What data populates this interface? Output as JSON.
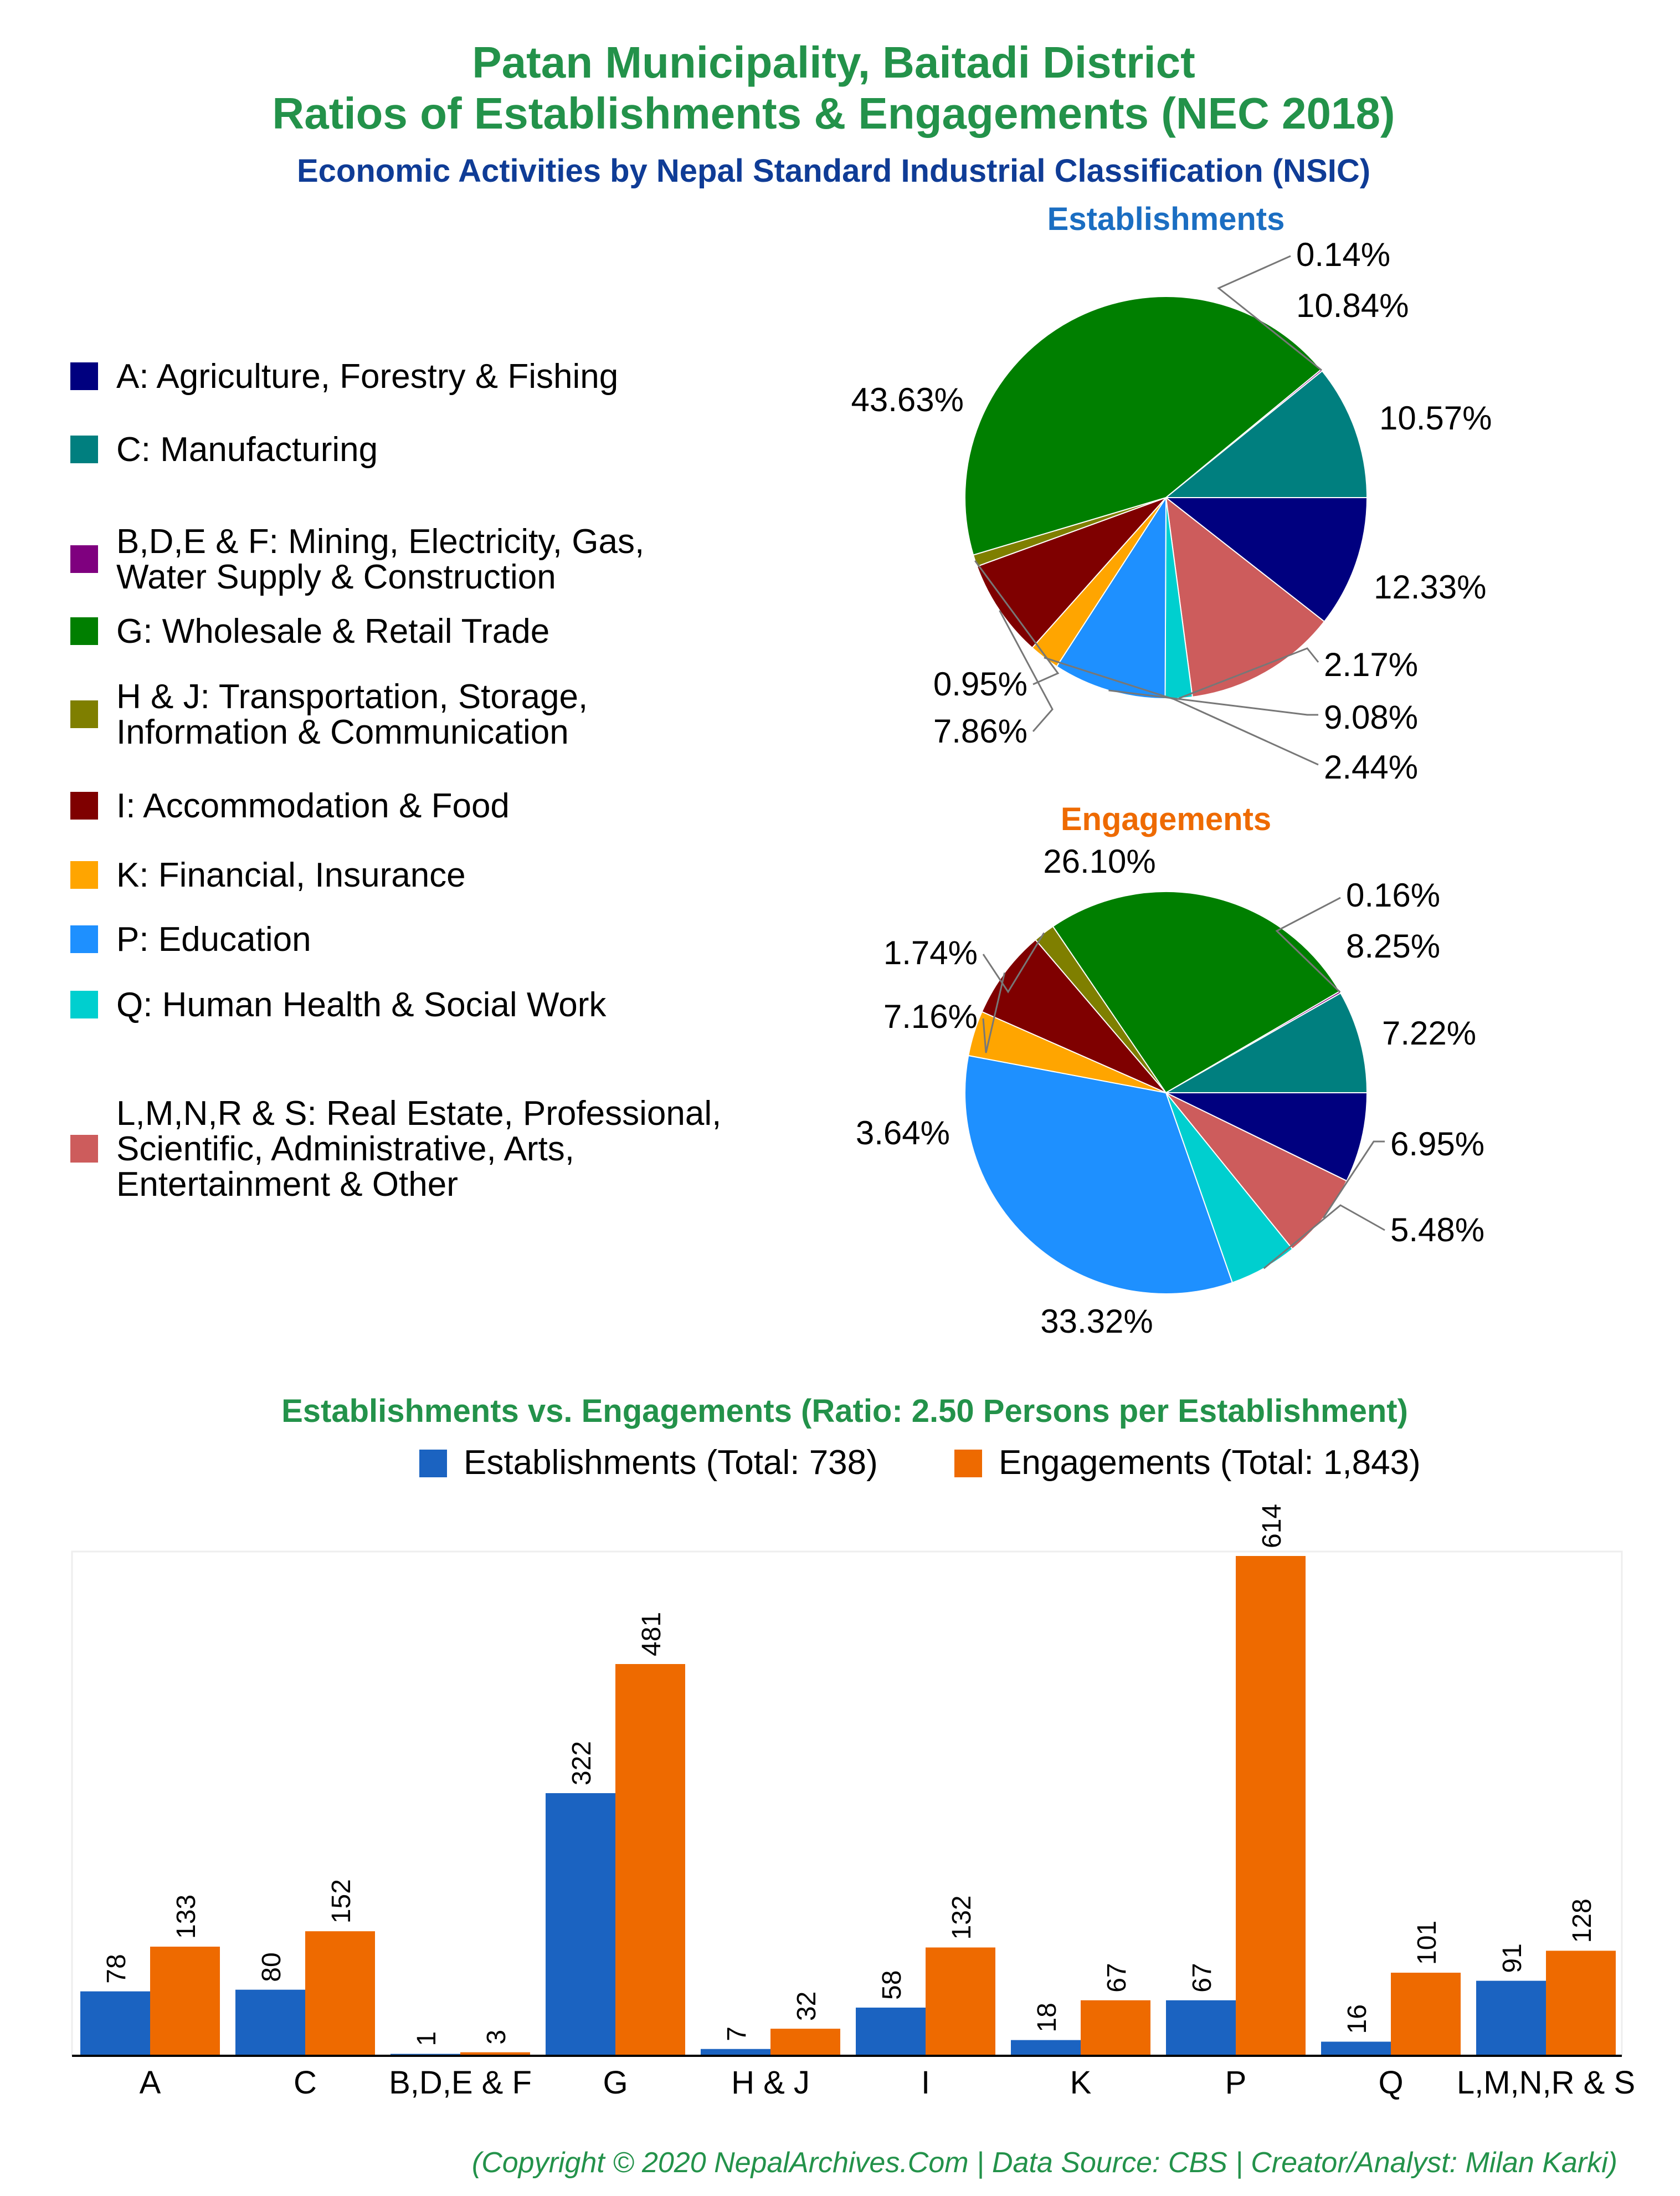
{
  "header": {
    "title_line1": "Patan Municipality, Baitadi District",
    "title_line2": "Ratios of Establishments & Engagements (NEC 2018)",
    "subtitle": "Economic Activities by Nepal Standard Industrial Classification (NSIC)"
  },
  "colors": {
    "title": "#23924a",
    "subtitle": "#0f3c96",
    "establishments": "#1b63c1",
    "engagements": "#ee6a00",
    "est_pie_title": "#1b6ec2",
    "eng_pie_title": "#ee6a00"
  },
  "legend": [
    {
      "code": "A",
      "label_lines": [
        "A: Agriculture, Forestry & Fishing"
      ],
      "color": "#00007f"
    },
    {
      "code": "C",
      "label_lines": [
        "C: Manufacturing"
      ],
      "color": "#007f7f"
    },
    {
      "code": "BDEF",
      "label_lines": [
        "B,D,E & F: Mining, Electricity, Gas,",
        "Water Supply & Construction"
      ],
      "color": "#7f007f"
    },
    {
      "code": "G",
      "label_lines": [
        "G: Wholesale & Retail Trade"
      ],
      "color": "#007f00"
    },
    {
      "code": "HJ",
      "label_lines": [
        "H & J: Transportation, Storage,",
        "Information & Communication"
      ],
      "color": "#7f7f00"
    },
    {
      "code": "I",
      "label_lines": [
        "I: Accommodation & Food"
      ],
      "color": "#7f0000"
    },
    {
      "code": "K",
      "label_lines": [
        "K: Financial, Insurance"
      ],
      "color": "#ffa500"
    },
    {
      "code": "P",
      "label_lines": [
        "P: Education"
      ],
      "color": "#1e90ff"
    },
    {
      "code": "Q",
      "label_lines": [
        "Q: Human Health & Social Work"
      ],
      "color": "#00cfcf"
    },
    {
      "code": "LMNRS",
      "label_lines": [
        "L,M,N,R & S: Real Estate, Professional,",
        "Scientific, Administrative, Arts,",
        "Entertainment & Other"
      ],
      "color": "#cd5c5c"
    }
  ],
  "chart_data": [
    {
      "type": "pie",
      "title": "Establishments",
      "slices": [
        {
          "code": "A",
          "value": 10.57,
          "label": "10.57%"
        },
        {
          "code": "LMNRS",
          "value": 12.33,
          "label": "12.33%"
        },
        {
          "code": "Q",
          "value": 2.17,
          "label": "2.17%"
        },
        {
          "code": "P",
          "value": 9.08,
          "label": "9.08%"
        },
        {
          "code": "K",
          "value": 2.44,
          "label": "2.44%"
        },
        {
          "code": "I",
          "value": 7.86,
          "label": "7.86%"
        },
        {
          "code": "HJ",
          "value": 0.95,
          "label": "0.95%"
        },
        {
          "code": "G",
          "value": 43.63,
          "label": "43.63%"
        },
        {
          "code": "BDEF",
          "value": 0.14,
          "label": "0.14%"
        },
        {
          "code": "C",
          "value": 10.84,
          "label": "10.84%"
        }
      ]
    },
    {
      "type": "pie",
      "title": "Engagements",
      "slices": [
        {
          "code": "A",
          "value": 7.22,
          "label": "7.22%"
        },
        {
          "code": "LMNRS",
          "value": 6.95,
          "label": "6.95%"
        },
        {
          "code": "Q",
          "value": 5.48,
          "label": "5.48%"
        },
        {
          "code": "P",
          "value": 33.32,
          "label": "33.32%"
        },
        {
          "code": "K",
          "value": 3.64,
          "label": "3.64%"
        },
        {
          "code": "I",
          "value": 7.16,
          "label": "7.16%"
        },
        {
          "code": "HJ",
          "value": 1.74,
          "label": "1.74%"
        },
        {
          "code": "G",
          "value": 26.1,
          "label": "26.10%"
        },
        {
          "code": "BDEF",
          "value": 0.16,
          "label": "0.16%"
        },
        {
          "code": "C",
          "value": 8.25,
          "label": "8.25%"
        }
      ]
    },
    {
      "type": "bar",
      "title": "Establishments vs. Engagements (Ratio: 2.50 Persons per Establishment)",
      "categories": [
        "A",
        "C",
        "B,D,E & F",
        "G",
        "H & J",
        "I",
        "K",
        "P",
        "Q",
        "L,M,N,R & S"
      ],
      "series": [
        {
          "name": "Establishments (Total: 738)",
          "values": [
            78,
            80,
            1,
            322,
            7,
            58,
            18,
            67,
            16,
            91
          ]
        },
        {
          "name": "Engagements (Total: 1,843)",
          "values": [
            133,
            152,
            3,
            481,
            32,
            132,
            67,
            614,
            101,
            128
          ]
        }
      ],
      "ylim": [
        0,
        614
      ],
      "grid": false,
      "legend_position": "top"
    }
  ],
  "footer": {
    "copyright": "(Copyright © 2020 NepalArchives.Com | Data Source: CBS | Creator/Analyst: Milan Karki)"
  }
}
